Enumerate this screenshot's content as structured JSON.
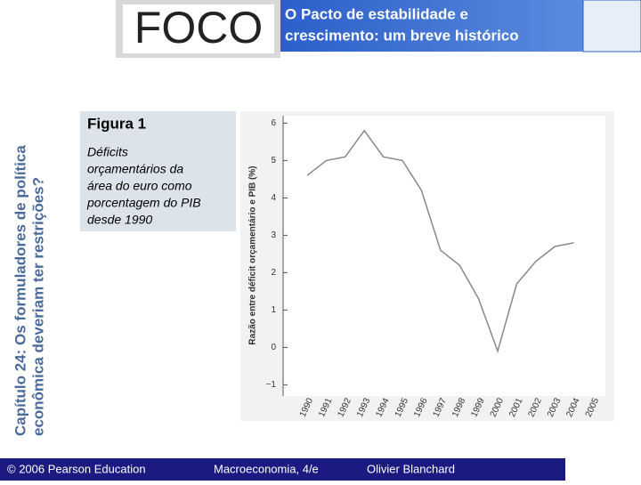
{
  "sidebar": {
    "line1": "Capítulo 24: Os formuladores de política",
    "line2": "econômica deveriam ter restrições?"
  },
  "header": {
    "logo": "FOCO",
    "title_line1": "O Pacto de estabilidade e",
    "title_line2": "crescimento: um breve histórico"
  },
  "figure": {
    "label": "Figura 1",
    "caption_lines": [
      "Déficits",
      "orçamentários da",
      "área do euro como",
      "porcentagem do PIB",
      "desde 1990"
    ]
  },
  "footer": {
    "copyright": "© 2006 Pearson Education",
    "book": "Macroeconomia, 4/e",
    "author": "Olivier Blanchard"
  },
  "chart_data": {
    "type": "line",
    "y_label": "Razão entre déficit orçamentário e PIB (%)",
    "categories": [
      "1990",
      "1991",
      "1992",
      "1993",
      "1994",
      "1995",
      "1996",
      "1997",
      "1998",
      "1999",
      "2000",
      "2001",
      "2002",
      "2003",
      "2004",
      "2005"
    ],
    "values": [
      4.6,
      5.0,
      5.1,
      5.8,
      5.1,
      5.0,
      4.2,
      2.6,
      2.2,
      1.3,
      -0.1,
      1.7,
      2.3,
      2.7,
      2.8,
      null
    ],
    "color": "#888888",
    "ylim": [
      -1.3,
      6.2
    ],
    "yticks": [
      {
        "value": -1,
        "label": "−1"
      },
      0,
      1,
      2,
      3,
      4,
      5,
      6
    ]
  }
}
